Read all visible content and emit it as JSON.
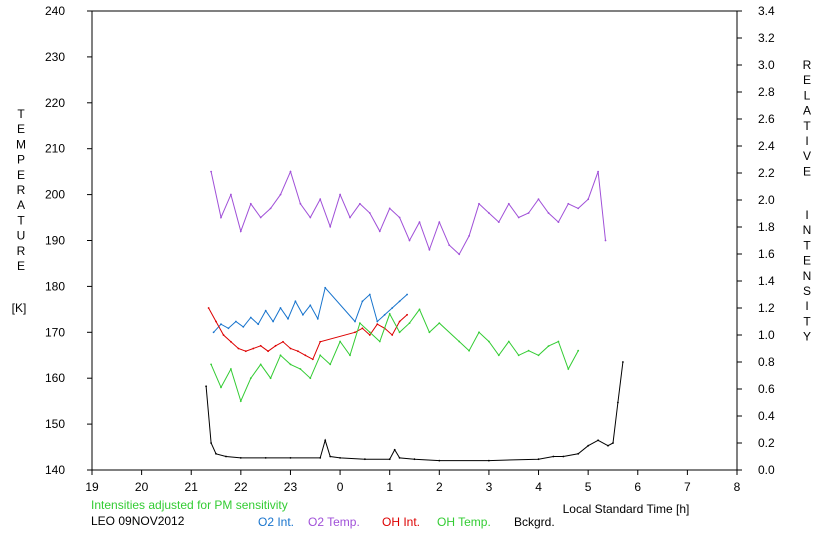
{
  "chart_data": {
    "type": "line",
    "title": "",
    "x_axis": {
      "label": "Local Standard Time [h]",
      "range": [
        19,
        32
      ],
      "ticks": [
        19,
        20,
        21,
        22,
        23,
        0,
        1,
        2,
        3,
        4,
        5,
        6,
        7,
        8
      ]
    },
    "y_left": {
      "label_letters": [
        "T",
        "E",
        "M",
        "P",
        "E",
        "R",
        "A",
        "T",
        "U",
        "R",
        "E"
      ],
      "unit": "[K]",
      "range": [
        140,
        240
      ],
      "ticks": [
        140,
        150,
        160,
        170,
        180,
        190,
        200,
        210,
        220,
        230,
        240
      ]
    },
    "y_right": {
      "label_letters_1": [
        "R",
        "E",
        "L",
        "A",
        "T",
        "I",
        "V",
        "E"
      ],
      "label_letters_2": [
        "I",
        "N",
        "T",
        "E",
        "N",
        "S",
        "I",
        "T",
        "Y"
      ],
      "range": [
        0.0,
        3.4
      ],
      "ticks": [
        "0.0",
        "0.2",
        "0.4",
        "0.6",
        "0.8",
        "1.0",
        "1.2",
        "1.4",
        "1.6",
        "1.8",
        "2.0",
        "2.2",
        "2.4",
        "2.6",
        "2.8",
        "3.0",
        "3.2",
        "3.4"
      ]
    },
    "grid": false,
    "legend_position": "bottom",
    "note": "Intensities adjusted for PM sensitivity",
    "station": "LEO 09NOV2012",
    "series": [
      {
        "name": "O2 Int.",
        "color": "#1874cd",
        "axis": "right",
        "x": [
          21.45,
          21.6,
          21.75,
          21.9,
          22.05,
          22.2,
          22.35,
          22.5,
          22.65,
          22.8,
          22.95,
          23.1,
          23.25,
          23.4,
          23.55,
          23.7,
          24.3,
          24.45,
          24.6,
          24.75,
          24.9,
          25.05,
          25.2,
          25.35
        ],
        "y": [
          1.02,
          1.08,
          1.05,
          1.1,
          1.06,
          1.13,
          1.08,
          1.18,
          1.1,
          1.2,
          1.12,
          1.25,
          1.15,
          1.22,
          1.12,
          1.35,
          1.1,
          1.25,
          1.3,
          1.1,
          1.15,
          1.2,
          1.25,
          1.3
        ]
      },
      {
        "name": "O2 Temp.",
        "color": "#a050d8",
        "axis": "left",
        "x": [
          21.4,
          21.6,
          21.8,
          22.0,
          22.2,
          22.4,
          22.6,
          22.8,
          23.0,
          23.2,
          23.4,
          23.6,
          23.8,
          24.0,
          24.2,
          24.4,
          24.6,
          24.8,
          25.0,
          25.2,
          25.4,
          25.6,
          25.8,
          26.0,
          26.2,
          26.4,
          26.6,
          26.8,
          27.0,
          27.2,
          27.4,
          27.6,
          27.8,
          28.0,
          28.2,
          28.4,
          28.6,
          28.8,
          29.0,
          29.2,
          29.35
        ],
        "y": [
          205,
          195,
          200,
          192,
          198,
          195,
          197,
          200,
          205,
          198,
          195,
          199,
          193,
          200,
          195,
          198,
          196,
          192,
          197,
          195,
          190,
          194,
          188,
          194,
          189,
          187,
          191,
          198,
          196,
          194,
          198,
          195,
          196,
          199,
          196,
          194,
          198,
          197,
          199,
          205,
          190
        ]
      },
      {
        "name": "OH Int.",
        "color": "#dd0000",
        "axis": "right",
        "x": [
          21.35,
          21.5,
          21.65,
          21.8,
          21.95,
          22.1,
          22.25,
          22.4,
          22.55,
          22.7,
          22.85,
          23.0,
          23.15,
          23.3,
          23.45,
          23.6,
          24.3,
          24.45,
          24.6,
          24.75,
          24.9,
          25.05,
          25.2,
          25.35
        ],
        "y": [
          1.2,
          1.1,
          1.0,
          0.95,
          0.9,
          0.88,
          0.9,
          0.92,
          0.88,
          0.92,
          0.95,
          0.9,
          0.88,
          0.85,
          0.82,
          0.95,
          1.02,
          1.05,
          1.0,
          1.08,
          1.05,
          1.0,
          1.1,
          1.15
        ]
      },
      {
        "name": "OH Temp.",
        "color": "#33cc33",
        "axis": "left",
        "x": [
          21.4,
          21.6,
          21.8,
          22.0,
          22.2,
          22.4,
          22.6,
          22.8,
          23.0,
          23.2,
          23.4,
          23.6,
          23.8,
          24.0,
          24.2,
          24.4,
          24.6,
          24.8,
          25.0,
          25.2,
          25.4,
          25.6,
          25.8,
          26.0,
          26.4,
          26.6,
          26.8,
          27.0,
          27.2,
          27.4,
          27.6,
          27.8,
          28.0,
          28.2,
          28.4,
          28.6,
          28.8
        ],
        "y": [
          163,
          158,
          162,
          155,
          160,
          163,
          160,
          165,
          163,
          162,
          160,
          165,
          163,
          168,
          165,
          172,
          170,
          168,
          174,
          170,
          172,
          175,
          170,
          172,
          168,
          166,
          170,
          168,
          165,
          168,
          165,
          166,
          165,
          167,
          168,
          162,
          166
        ]
      },
      {
        "name": "Bckgrd.",
        "color": "#000000",
        "axis": "right",
        "x": [
          21.3,
          21.4,
          21.5,
          21.7,
          22.0,
          22.5,
          23.0,
          23.6,
          23.7,
          23.8,
          24.0,
          24.5,
          25.0,
          25.1,
          25.2,
          25.5,
          26.0,
          27.0,
          28.0,
          28.3,
          28.5,
          28.8,
          29.0,
          29.2,
          29.4,
          29.5,
          29.6,
          29.7
        ],
        "y": [
          0.62,
          0.2,
          0.12,
          0.1,
          0.09,
          0.09,
          0.09,
          0.09,
          0.22,
          0.1,
          0.09,
          0.08,
          0.08,
          0.15,
          0.09,
          0.08,
          0.07,
          0.07,
          0.08,
          0.1,
          0.1,
          0.12,
          0.18,
          0.22,
          0.18,
          0.2,
          0.5,
          0.8
        ]
      }
    ]
  }
}
